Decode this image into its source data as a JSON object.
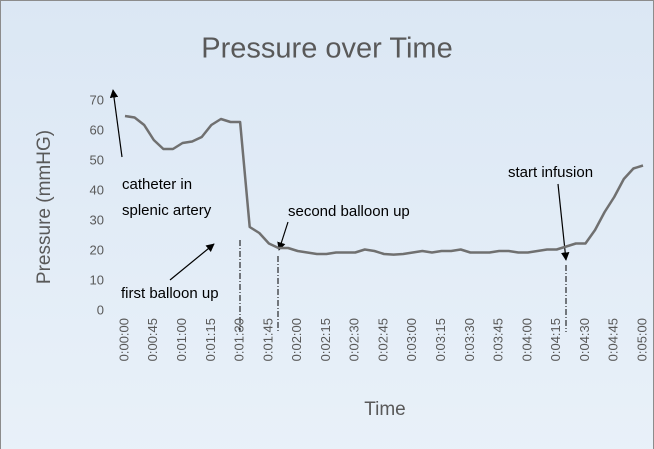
{
  "chart_data": {
    "type": "line",
    "title": "Pressure over Time",
    "x_label": "Time",
    "y_label": "Pressure (mmHG)",
    "categories": [
      "0:00:00",
      null,
      null,
      "0:00:45",
      null,
      null,
      "0:01:00",
      null,
      null,
      "0:01:15",
      null,
      null,
      "0:01:30",
      null,
      null,
      "0:01:45",
      null,
      null,
      "0:02:00",
      null,
      null,
      "0:02:15",
      null,
      null,
      "0:02:30",
      null,
      null,
      "0:02:45",
      null,
      null,
      "0:03:00",
      null,
      null,
      "0:03:15",
      null,
      null,
      "0:03:30",
      null,
      null,
      "0:03:45",
      null,
      null,
      "0:04:00",
      null,
      null,
      "0:04:15",
      null,
      null,
      "0:04:30",
      null,
      null,
      "0:04:45",
      null,
      null,
      "0:05:00"
    ],
    "series": [
      {
        "name": "Pressure",
        "color": "#707070",
        "values": [
          65,
          64.5,
          62,
          57,
          54,
          54,
          56,
          56.5,
          58,
          62,
          64,
          63,
          63,
          28,
          26,
          22.5,
          21,
          21,
          20,
          19.5,
          19,
          19,
          19.5,
          19.5,
          19.5,
          20.5,
          20,
          19,
          18.8,
          19,
          19.5,
          20,
          19.5,
          20,
          20,
          20.5,
          19.5,
          19.5,
          19.5,
          20,
          20,
          19.5,
          19.5,
          20,
          20.5,
          20.5,
          21.5,
          22.5,
          22.5,
          27,
          33,
          38,
          44,
          47.5,
          48.5
        ]
      }
    ],
    "ylim": [
      0,
      70
    ],
    "yticks": [
      0,
      10,
      20,
      30,
      40,
      50,
      60,
      70
    ],
    "grid": false,
    "annotations": [
      {
        "lines": [
          "catheter in",
          "splenic artery"
        ]
      },
      {
        "lines": [
          "second balloon up"
        ]
      },
      {
        "lines": [
          "first balloon up"
        ]
      },
      {
        "lines": [
          "start infusion"
        ]
      }
    ]
  }
}
